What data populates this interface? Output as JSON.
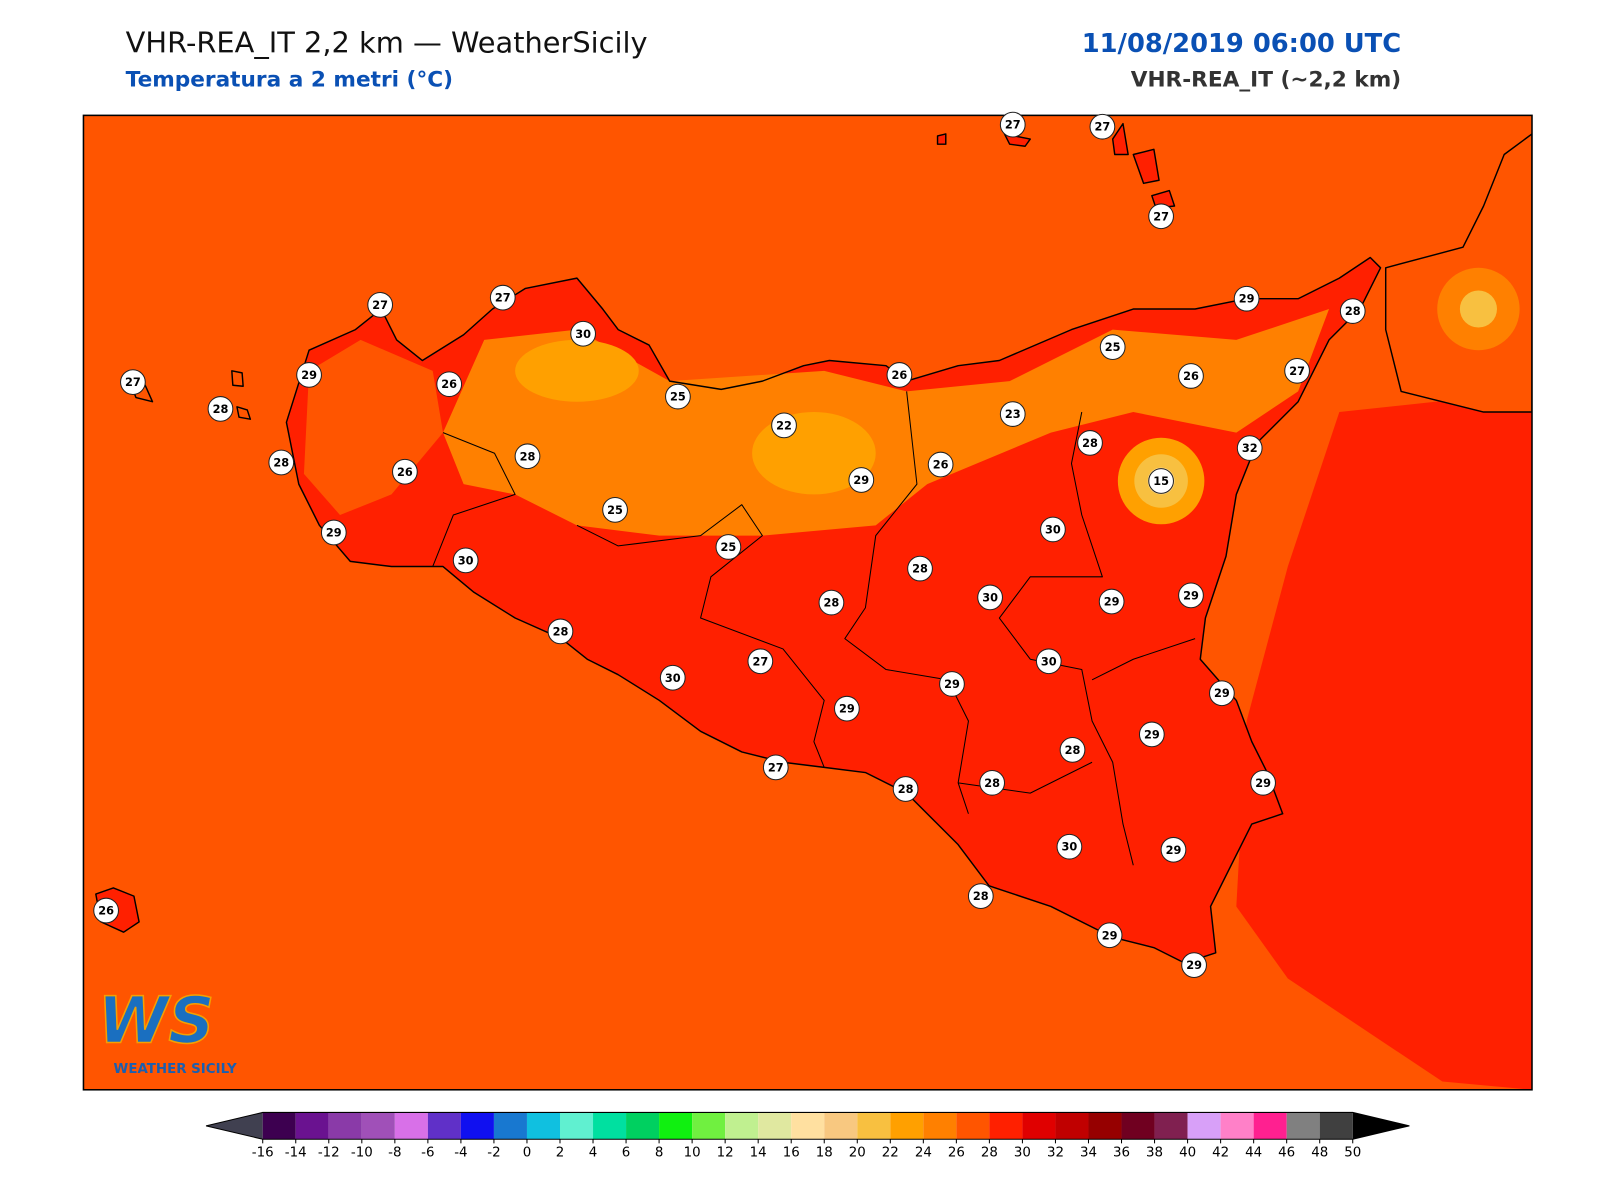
{
  "header": {
    "title": "VHR-REA_IT 2,2 km — WeatherSicily",
    "subtitle": "Temperatura a 2 metri (°C)",
    "datetime": "11/08/2019 06:00 UTC",
    "model": "VHR-REA_IT (~2,2 km)"
  },
  "stations": [
    27,
    27,
    27,
    27,
    27,
    30,
    29,
    28,
    27,
    29,
    26,
    28,
    25,
    26,
    25,
    26,
    27,
    22,
    23,
    28,
    32,
    28,
    26,
    28,
    29,
    26,
    15,
    25,
    29,
    30,
    25,
    30,
    28,
    28,
    30,
    29,
    29,
    28,
    27,
    30,
    30,
    29,
    29,
    29,
    29,
    28,
    27,
    28,
    28,
    29,
    30,
    29,
    28,
    26,
    29,
    29
  ],
  "colorbar": {
    "ticks": [
      -16,
      -14,
      -12,
      -10,
      -8,
      -6,
      -4,
      -2,
      0,
      2,
      4,
      6,
      8,
      10,
      12,
      14,
      16,
      18,
      20,
      22,
      24,
      26,
      28,
      30,
      32,
      34,
      36,
      38,
      40,
      42,
      44,
      46,
      48,
      50
    ],
    "colors": [
      "#3d0050",
      "#6a1290",
      "#8a3aa8",
      "#a050b8",
      "#d870e8",
      "#6030c8",
      "#1010f0",
      "#1878d0",
      "#10c0e0",
      "#60f0d0",
      "#00e0a0",
      "#00d060",
      "#10f010",
      "#70f040",
      "#c0f090",
      "#e0e8a0",
      "#ffe0a0",
      "#f8c880",
      "#f8c040",
      "#ffa000",
      "#ff8000",
      "#ff5500",
      "#ff2000",
      "#e00000",
      "#c00000",
      "#960000",
      "#700020",
      "#802050",
      "#d8a0f8",
      "#ff80c8",
      "#ff2090",
      "#808080",
      "#404040"
    ],
    "under_color": "#404050",
    "over_color": "#000000"
  },
  "logo": {
    "mark": "WS",
    "name": "WEATHER SICILY"
  }
}
